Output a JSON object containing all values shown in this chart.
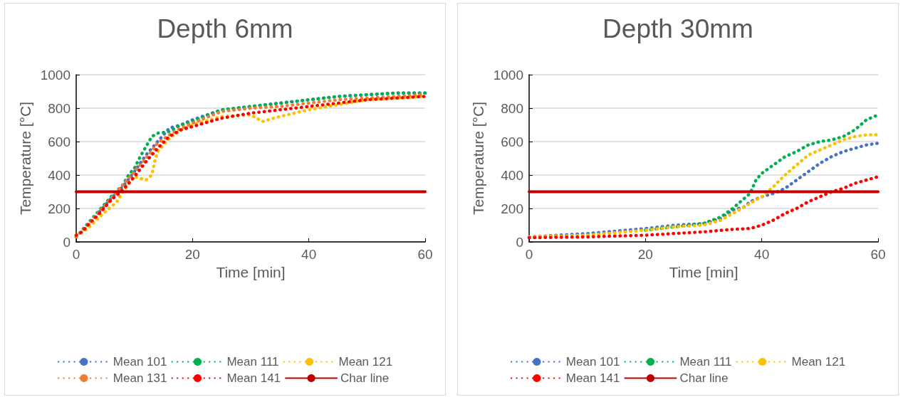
{
  "chart_data": [
    {
      "type": "line",
      "title": "Depth 6mm",
      "xlabel": "Time [min]",
      "ylabel": "Temperature [°C]",
      "xlim": [
        0,
        60
      ],
      "xticks": [
        0,
        20,
        40,
        60
      ],
      "ylim": [
        0,
        1000
      ],
      "yticks": [
        0,
        200,
        400,
        600,
        800,
        1000
      ],
      "grid": "y",
      "legend": "bottom",
      "marker": "none",
      "series": [
        {
          "name": "Mean 101",
          "color": "#4472c4",
          "line_style": "dotted",
          "x": [
            4,
            6,
            8,
            10,
            12,
            14,
            16,
            18,
            20,
            25,
            30,
            35,
            40,
            45,
            50,
            55,
            60
          ],
          "values": [
            180,
            260,
            330,
            420,
            520,
            600,
            680,
            700,
            730,
            790,
            810,
            830,
            850,
            870,
            880,
            890,
            890
          ]
        },
        {
          "name": "Mean 111",
          "color": "#00b050",
          "line_style": "dotted",
          "x": [
            0,
            1,
            2,
            4,
            6,
            8,
            9,
            10,
            11,
            12,
            13,
            14,
            16,
            18,
            20,
            25,
            30,
            35,
            40,
            45,
            50,
            55,
            60
          ],
          "values": [
            30,
            70,
            110,
            190,
            270,
            340,
            400,
            440,
            510,
            570,
            630,
            650,
            660,
            700,
            720,
            790,
            810,
            830,
            850,
            870,
            880,
            890,
            890
          ]
        },
        {
          "name": "Mean 121",
          "color": "#ffc000",
          "line_style": "dotted",
          "x": [
            0,
            2,
            4,
            6,
            7,
            8,
            10,
            12,
            13,
            13.5,
            14,
            16,
            18,
            20,
            25,
            30,
            32,
            35,
            40,
            45,
            50,
            55,
            60
          ],
          "values": [
            40,
            80,
            150,
            210,
            240,
            300,
            390,
            370,
            400,
            480,
            540,
            620,
            670,
            700,
            750,
            760,
            720,
            750,
            790,
            820,
            850,
            860,
            870
          ]
        },
        {
          "name": "Mean 131",
          "color": "#ed7d31",
          "line_style": "dotted",
          "x": [
            0,
            2,
            4,
            6,
            8,
            10,
            12,
            14,
            16,
            18,
            20,
            25,
            30,
            35,
            40,
            45,
            50,
            55,
            60
          ],
          "values": [
            30,
            100,
            180,
            260,
            340,
            420,
            500,
            590,
            640,
            680,
            710,
            780,
            800,
            810,
            830,
            850,
            860,
            870,
            880
          ]
        },
        {
          "name": "Mean 141",
          "color": "#ff0000",
          "line_style": "dotted",
          "x": [
            0,
            1,
            2,
            4,
            6,
            8,
            10,
            12,
            14,
            16,
            18,
            20,
            25,
            30,
            35,
            40,
            45,
            50,
            55,
            60
          ],
          "values": [
            40,
            60,
            100,
            170,
            250,
            310,
            390,
            480,
            560,
            630,
            670,
            690,
            740,
            770,
            790,
            810,
            830,
            850,
            860,
            870
          ]
        },
        {
          "name": "Char line",
          "color": "#c00000",
          "line_style": "solid",
          "x": [
            0,
            60
          ],
          "values": [
            300,
            300
          ]
        }
      ]
    },
    {
      "type": "line",
      "title": "Depth 30mm",
      "xlabel": "Time [min]",
      "ylabel": "Temperature [°C]",
      "xlim": [
        0,
        60
      ],
      "xticks": [
        0,
        20,
        40,
        60
      ],
      "ylim": [
        0,
        1000
      ],
      "yticks": [
        0,
        200,
        400,
        600,
        800,
        1000
      ],
      "grid": "y",
      "legend": "bottom",
      "marker": "none",
      "series": [
        {
          "name": "Mean 101",
          "color": "#4472c4",
          "line_style": "dotted",
          "x": [
            0,
            10,
            20,
            25,
            30,
            33,
            35,
            37,
            38,
            40,
            42,
            44,
            46,
            48,
            50,
            52,
            54,
            56,
            58,
            60
          ],
          "values": [
            30,
            50,
            80,
            100,
            110,
            140,
            190,
            210,
            240,
            270,
            290,
            320,
            370,
            420,
            470,
            510,
            540,
            560,
            580,
            590
          ]
        },
        {
          "name": "Mean 111",
          "color": "#00b050",
          "line_style": "dotted",
          "x": [
            20,
            25,
            30,
            33,
            35,
            37,
            38,
            39,
            40,
            42,
            44,
            46,
            48,
            50,
            52,
            54,
            56,
            58,
            60
          ],
          "values": [
            70,
            90,
            110,
            150,
            200,
            260,
            290,
            370,
            410,
            460,
            510,
            540,
            580,
            600,
            610,
            630,
            670,
            730,
            760
          ]
        },
        {
          "name": "Mean 121",
          "color": "#ffc000",
          "line_style": "dotted",
          "x": [
            0,
            10,
            20,
            25,
            30,
            33,
            35,
            37,
            39,
            40,
            42,
            44,
            46,
            48,
            50,
            52,
            54,
            56,
            58,
            60
          ],
          "values": [
            30,
            40,
            70,
            90,
            100,
            130,
            170,
            210,
            250,
            270,
            330,
            400,
            460,
            520,
            550,
            580,
            610,
            630,
            640,
            640
          ]
        },
        {
          "name": "Mean 141",
          "color": "#ff0000",
          "line_style": "dotted",
          "x": [
            0,
            10,
            20,
            25,
            30,
            35,
            38,
            40,
            42,
            44,
            46,
            48,
            50,
            52,
            54,
            56,
            58,
            60
          ],
          "values": [
            25,
            30,
            40,
            50,
            60,
            75,
            80,
            100,
            130,
            170,
            200,
            240,
            270,
            300,
            320,
            350,
            370,
            390
          ]
        },
        {
          "name": "Char line",
          "color": "#c00000",
          "line_style": "solid",
          "x": [
            0,
            60
          ],
          "values": [
            300,
            300
          ]
        }
      ]
    }
  ]
}
